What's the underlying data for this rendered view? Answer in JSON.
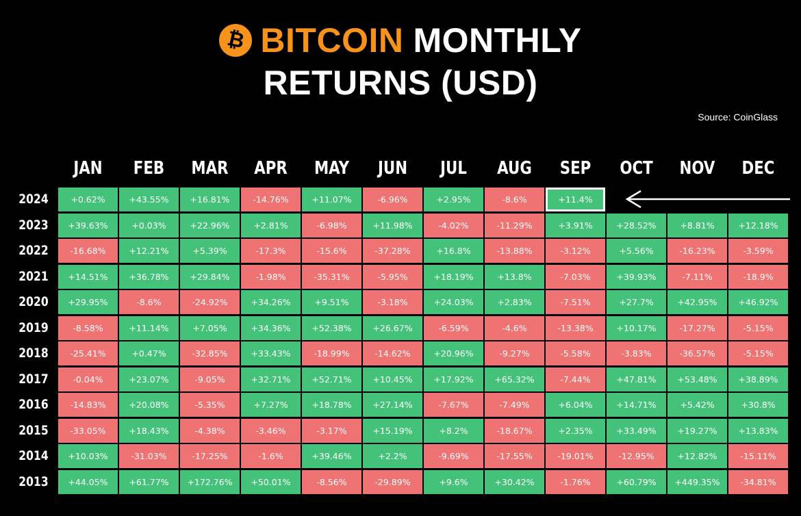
{
  "header": {
    "logo_symbol": "₿",
    "title_accent": "BITCOIN",
    "title_rest": "MONTHLY",
    "title_line2": "RETURNS (USD)",
    "source": "Source: CoinGlass"
  },
  "colors": {
    "positive": "#45c27a",
    "negative": "#ef7373",
    "accent": "#f7931a",
    "background": "#000000"
  },
  "chart_data": {
    "type": "table",
    "title": "BITCOIN MONTHLY RETURNS (USD)",
    "columns": [
      "JAN",
      "FEB",
      "MAR",
      "APR",
      "MAY",
      "JUN",
      "JUL",
      "AUG",
      "SEP",
      "OCT",
      "NOV",
      "DEC"
    ],
    "highlighted": {
      "year": "2024",
      "month": "SEP"
    },
    "rows": [
      {
        "year": "2024",
        "values": [
          "+0.62%",
          "+43.55%",
          "+16.81%",
          "-14.76%",
          "+11.07%",
          "-6.96%",
          "+2.95%",
          "-8.6%",
          "+11.4%",
          "",
          "",
          ""
        ]
      },
      {
        "year": "2023",
        "values": [
          "+39.63%",
          "+0.03%",
          "+22.96%",
          "+2.81%",
          "-6.98%",
          "+11.98%",
          "-4.02%",
          "-11.29%",
          "+3.91%",
          "+28.52%",
          "+8.81%",
          "+12.18%"
        ]
      },
      {
        "year": "2022",
        "values": [
          "-16.68%",
          "+12.21%",
          "+5.39%",
          "-17.3%",
          "-15.6%",
          "-37.28%",
          "+16.8%",
          "-13.88%",
          "-3.12%",
          "+5.56%",
          "-16.23%",
          "-3.59%"
        ]
      },
      {
        "year": "2021",
        "values": [
          "+14.51%",
          "+36.78%",
          "+29.84%",
          "-1.98%",
          "-35.31%",
          "-5.95%",
          "+18.19%",
          "+13.8%",
          "-7.03%",
          "+39.93%",
          "-7.11%",
          "-18.9%"
        ]
      },
      {
        "year": "2020",
        "values": [
          "+29.95%",
          "-8.6%",
          "-24.92%",
          "+34.26%",
          "+9.51%",
          "-3.18%",
          "+24.03%",
          "+2.83%",
          "-7.51%",
          "+27.7%",
          "+42.95%",
          "+46.92%"
        ]
      },
      {
        "year": "2019",
        "values": [
          "-8.58%",
          "+11.14%",
          "+7.05%",
          "+34.36%",
          "+52.38%",
          "+26.67%",
          "-6.59%",
          "-4.6%",
          "-13.38%",
          "+10.17%",
          "-17.27%",
          "-5.15%"
        ]
      },
      {
        "year": "2018",
        "values": [
          "-25.41%",
          "+0.47%",
          "-32.85%",
          "+33.43%",
          "-18.99%",
          "-14.62%",
          "+20.96%",
          "-9.27%",
          "-5.58%",
          "-3.83%",
          "-36.57%",
          "-5.15%"
        ]
      },
      {
        "year": "2017",
        "values": [
          "-0.04%",
          "+23.07%",
          "-9.05%",
          "+32.71%",
          "+52.71%",
          "+10.45%",
          "+17.92%",
          "+65.32%",
          "-7.44%",
          "+47.81%",
          "+53.48%",
          "+38.89%"
        ]
      },
      {
        "year": "2016",
        "values": [
          "-14.83%",
          "+20.08%",
          "-5.35%",
          "+7.27%",
          "+18.78%",
          "+27.14%",
          "-7.67%",
          "-7.49%",
          "+6.04%",
          "+14.71%",
          "+5.42%",
          "+30.8%"
        ]
      },
      {
        "year": "2015",
        "values": [
          "-33.05%",
          "+18.43%",
          "-4.38%",
          "-3.46%",
          "-3.17%",
          "+15.19%",
          "+8.2%",
          "-18.67%",
          "+2.35%",
          "+33.49%",
          "+19.27%",
          "+13.83%"
        ]
      },
      {
        "year": "2014",
        "values": [
          "+10.03%",
          "-31.03%",
          "-17.25%",
          "-1.6%",
          "+39.46%",
          "+2.2%",
          "-9.69%",
          "-17.55%",
          "-19.01%",
          "-12.95%",
          "+12.82%",
          "-15.11%"
        ]
      },
      {
        "year": "2013",
        "values": [
          "+44.05%",
          "+61.77%",
          "+172.76%",
          "+50.01%",
          "-8.56%",
          "-29.89%",
          "+9.6%",
          "+30.42%",
          "-1.76%",
          "+60.79%",
          "+449.35%",
          "-34.81%"
        ]
      }
    ]
  }
}
